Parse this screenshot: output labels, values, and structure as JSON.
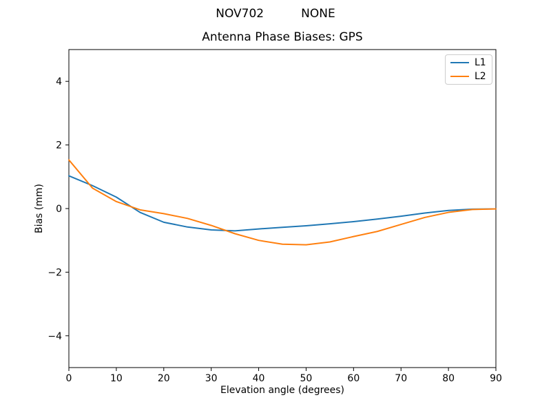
{
  "figure": {
    "suptitle": "NOV702          NONE",
    "background": "#ffffff",
    "text_color": "#000000",
    "axes_frame_color": "#000000",
    "legend_border_color": "#cccccc"
  },
  "chart_data": {
    "type": "line",
    "title": "Antenna Phase Biases: GPS",
    "xlabel": "Elevation angle (degrees)",
    "ylabel": "Bias (mm)",
    "xlim": [
      0,
      90
    ],
    "ylim": [
      -5,
      5
    ],
    "xticks": [
      0,
      10,
      20,
      30,
      40,
      50,
      60,
      70,
      80,
      90
    ],
    "yticks": [
      -4,
      -2,
      0,
      2,
      4
    ],
    "grid": false,
    "legend_position": "upper right",
    "x": [
      0,
      5,
      10,
      15,
      20,
      25,
      30,
      35,
      40,
      45,
      50,
      55,
      60,
      65,
      70,
      75,
      80,
      85,
      90
    ],
    "series": [
      {
        "name": "L1",
        "color": "#1f77b4",
        "values": [
          1.03,
          0.72,
          0.36,
          -0.12,
          -0.43,
          -0.58,
          -0.67,
          -0.7,
          -0.64,
          -0.59,
          -0.54,
          -0.48,
          -0.41,
          -0.33,
          -0.24,
          -0.14,
          -0.06,
          -0.02,
          -0.01
        ]
      },
      {
        "name": "L2",
        "color": "#ff7f0e",
        "values": [
          1.53,
          0.64,
          0.22,
          -0.04,
          -0.16,
          -0.31,
          -0.53,
          -0.79,
          -1.0,
          -1.12,
          -1.14,
          -1.05,
          -0.88,
          -0.72,
          -0.5,
          -0.28,
          -0.12,
          -0.03,
          -0.01
        ]
      }
    ]
  }
}
